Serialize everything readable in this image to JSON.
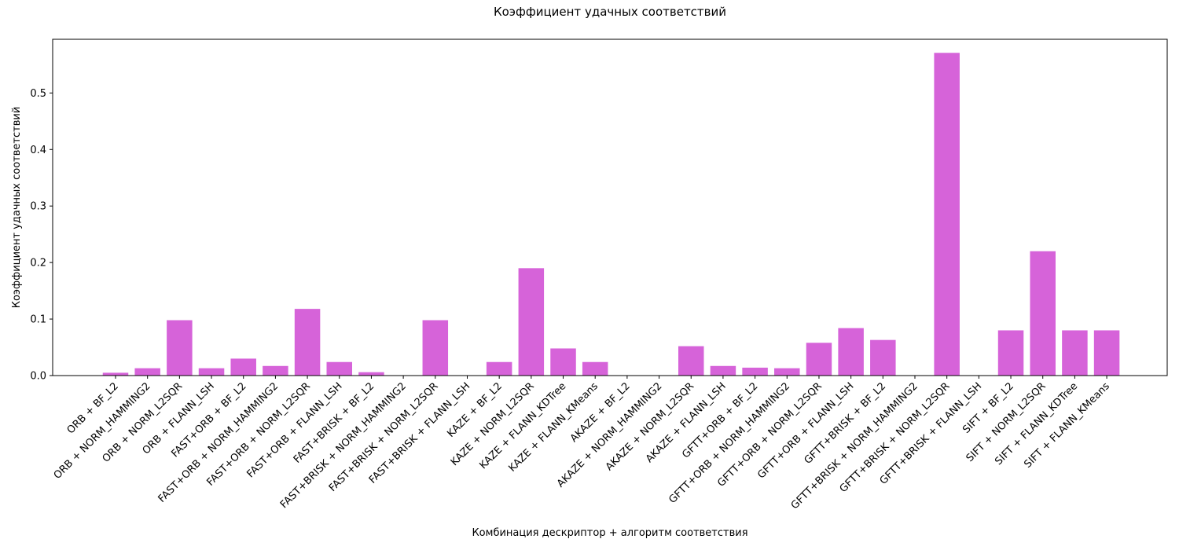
{
  "chart_data": {
    "type": "bar",
    "title": "Коэффициент удачных соответствий",
    "xlabel": "Комбинация дескриптор + алгоритм соответствия",
    "ylabel": "Коэффициент удачных соответствий",
    "ylim": [
      0,
      0.595
    ],
    "yticks": [
      "0.0",
      "0.1",
      "0.2",
      "0.3",
      "0.4",
      "0.5"
    ],
    "grid": false,
    "bar_color": "#d663d9",
    "categories": [
      "ORB + BF_L2",
      "ORB + NORM_HAMMING2",
      "ORB + NORM_L2SQR",
      "ORB + FLANN_LSH",
      "FAST+ORB + BF_L2",
      "FAST+ORB + NORM_HAMMING2",
      "FAST+ORB + NORM_L2SQR",
      "FAST+ORB + FLANN_LSH",
      "FAST+BRISK + BF_L2",
      "FAST+BRISK + NORM_HAMMING2",
      "FAST+BRISK + NORM_L2SQR",
      "FAST+BRISK + FLANN_LSH",
      "KAZE + BF_L2",
      "KAZE + NORM_L2SQR",
      "KAZE + FLANN_KDTree",
      "KAZE + FLANN_KMeans",
      "AKAZE + BF_L2",
      "AKAZE + NORM_HAMMING2",
      "AKAZE + NORM_L2SQR",
      "AKAZE + FLANN_LSH",
      "GFTT+ORB + BF_L2",
      "GFTT+ORB + NORM_HAMMING2",
      "GFTT+ORB + NORM_L2SQR",
      "GFTT+ORB + FLANN_LSH",
      "GFTT+BRISK + BF_L2",
      "GFTT+BRISK + NORM_HAMMING2",
      "GFTT+BRISK + NORM_L2SQR",
      "GFTT+BRISK + FLANN_LSH",
      "SIFT + BF_L2",
      "SIFT + NORM_L2SQR",
      "SIFT + FLANN_KDTree",
      "SIFT + FLANN_KMeans"
    ],
    "values": [
      0.005,
      0.013,
      0.098,
      0.013,
      0.03,
      0.017,
      0.118,
      0.024,
      0.006,
      0.0,
      0.098,
      0.0,
      0.024,
      0.19,
      0.048,
      0.024,
      0.0,
      0.0,
      0.052,
      0.017,
      0.014,
      0.013,
      0.058,
      0.084,
      0.063,
      0.0,
      0.571,
      0.0,
      0.08,
      0.22,
      0.08,
      0.08
    ]
  }
}
